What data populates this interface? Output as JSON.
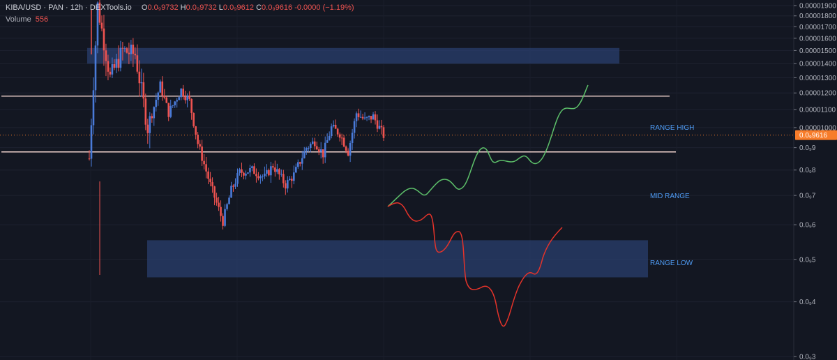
{
  "header": {
    "symbol": "KIBA/USD · PAN · 12h · DEXTools.io",
    "open_label": "O",
    "open_value": "0.0₉9732",
    "high_label": "H",
    "high_value": "0.0₉9732",
    "low_label": "L",
    "low_value": "0.0₉9612",
    "close_label": "C",
    "close_value": "0.0₉9616",
    "change": "-0.0000 (−1.19%)",
    "volume_label": "Volume",
    "volume_value": "556"
  },
  "colors": {
    "background": "#131722",
    "up": "#4a7bd9",
    "down": "#ef5350",
    "zone": "#2a3f6e",
    "range_line": "#f3d6d0",
    "bull_path": "#5dc06a",
    "bear_path": "#e5332a",
    "annotation": "#4f9cf5",
    "price_tag": "#f77c2a"
  },
  "chart_data": {
    "type": "candlestick",
    "y_scale": "log",
    "y_ticks": [
      "0.00001900",
      "0.00001800",
      "0.00001700",
      "0.00001600",
      "0.00001500",
      "0.00001400",
      "0.00001300",
      "0.00001200",
      "0.00001100",
      "0.00001000",
      "0.0₉9",
      "0.0₉8",
      "0.0₉7",
      "0.0₉6",
      "0.0₉5",
      "0.0₉4",
      "0.0₉3"
    ],
    "y_tick_values": [
      1.9e-05,
      1.8e-05,
      1.7e-05,
      1.6e-05,
      1.5e-05,
      1.4e-05,
      1.3e-05,
      1.2e-05,
      1.1e-05,
      1e-05,
      9e-06,
      8e-06,
      7e-06,
      6e-06,
      5e-06,
      4e-06,
      3e-06
    ],
    "ylim": [
      3e-06,
      1.95e-05
    ],
    "last_price_label": "0.0₉9616",
    "last_price": 9.616e-06,
    "candle_count": 142,
    "price_path": [
      [
        0,
        8.5e-06
      ],
      [
        4,
        1.9e-05
      ],
      [
        10,
        1.3e-05
      ],
      [
        16,
        1.5e-05
      ],
      [
        22,
        1.47e-05
      ],
      [
        28,
        1e-05
      ],
      [
        34,
        1.25e-05
      ],
      [
        38,
        1.08e-05
      ],
      [
        44,
        1.22e-05
      ],
      [
        48,
        1.15e-05
      ],
      [
        52,
        9.2e-06
      ],
      [
        58,
        7.4e-06
      ],
      [
        64,
        6.1e-06
      ],
      [
        68,
        7.2e-06
      ],
      [
        72,
        7.9e-06
      ],
      [
        78,
        8e-06
      ],
      [
        84,
        7.7e-06
      ],
      [
        88,
        8.2e-06
      ],
      [
        94,
        7.4e-06
      ],
      [
        98,
        7.8e-06
      ],
      [
        104,
        9e-06
      ],
      [
        108,
        9.3e-06
      ],
      [
        112,
        8.7e-06
      ],
      [
        116,
        1e-05
      ],
      [
        120,
        9.7e-06
      ],
      [
        124,
        8.8e-06
      ],
      [
        128,
        1.08e-05
      ],
      [
        132,
        1.04e-05
      ],
      [
        136,
        1.06e-05
      ],
      [
        141,
        9.6e-06
      ]
    ],
    "annotations": {
      "range_high": "RANGE HIGH",
      "mid_range": "MID RANGE",
      "range_low": "RANGE LOW"
    },
    "zones": [
      {
        "name": "upper-supply-zone",
        "from": 1.4e-05,
        "to": 1.52e-05
      },
      {
        "name": "lower-demand-zone",
        "from": 4.55e-06,
        "to": 5.53e-06
      }
    ],
    "levels": [
      {
        "name": "range-high-line",
        "value": 1.18e-05
      },
      {
        "name": "range-low-line",
        "value": 8.8e-06
      }
    ]
  }
}
